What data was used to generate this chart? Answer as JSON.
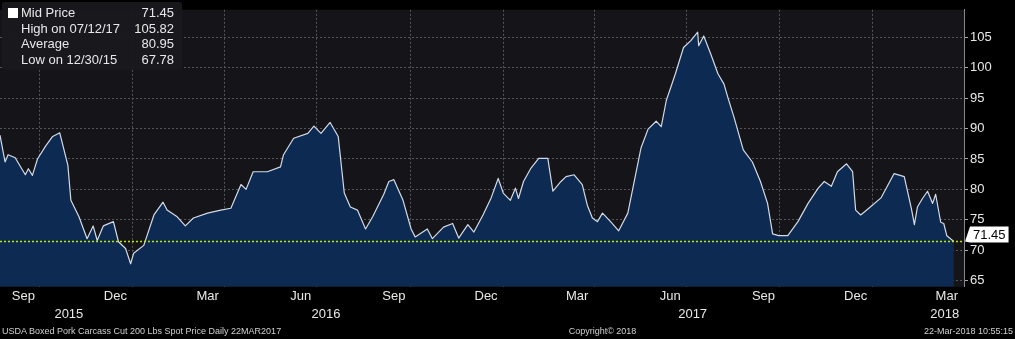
{
  "chart_data": {
    "type": "area",
    "x": [
      "2015-08-23",
      "2015-08-28",
      "2015-08-31",
      "2015-09-07",
      "2015-09-17",
      "2015-09-20",
      "2015-09-24",
      "2015-09-29",
      "2015-10-07",
      "2015-10-14",
      "2015-10-21",
      "2015-10-29",
      "2015-11-01",
      "2015-11-09",
      "2015-11-17",
      "2015-11-23",
      "2015-11-27",
      "2015-12-03",
      "2015-12-13",
      "2015-12-18",
      "2015-12-25",
      "2015-12-30",
      "2016-01-02",
      "2016-01-12",
      "2016-01-22",
      "2016-01-31",
      "2016-02-04",
      "2016-02-14",
      "2016-02-22",
      "2016-03-01",
      "2016-03-15",
      "2016-03-28",
      "2016-04-07",
      "2016-04-17",
      "2016-04-22",
      "2016-04-29",
      "2016-05-13",
      "2016-05-26",
      "2016-05-29",
      "2016-06-08",
      "2016-06-22",
      "2016-06-28",
      "2016-07-05",
      "2016-07-14",
      "2016-07-22",
      "2016-07-28",
      "2016-08-03",
      "2016-08-10",
      "2016-08-18",
      "2016-08-25",
      "2016-09-05",
      "2016-09-10",
      "2016-09-15",
      "2016-09-24",
      "2016-10-02",
      "2016-10-06",
      "2016-10-18",
      "2016-10-23",
      "2016-11-03",
      "2016-11-12",
      "2016-11-18",
      "2016-11-27",
      "2016-12-03",
      "2016-12-12",
      "2016-12-20",
      "2016-12-27",
      "2017-01-01",
      "2017-01-08",
      "2017-01-13",
      "2017-01-16",
      "2017-01-21",
      "2017-01-28",
      "2017-02-05",
      "2017-02-14",
      "2017-02-19",
      "2017-02-27",
      "2017-03-04",
      "2017-03-12",
      "2017-03-20",
      "2017-03-25",
      "2017-03-30",
      "2017-04-04",
      "2017-04-09",
      "2017-04-17",
      "2017-04-25",
      "2017-05-04",
      "2017-05-09",
      "2017-05-17",
      "2017-05-24",
      "2017-06-01",
      "2017-06-06",
      "2017-06-11",
      "2017-06-20",
      "2017-06-28",
      "2017-07-05",
      "2017-07-12",
      "2017-07-13",
      "2017-07-18",
      "2017-07-25",
      "2017-08-01",
      "2017-08-07",
      "2017-08-11",
      "2017-08-17",
      "2017-08-26",
      "2017-09-04",
      "2017-09-12",
      "2017-09-19",
      "2017-09-24",
      "2017-09-30",
      "2017-10-09",
      "2017-10-19",
      "2017-10-29",
      "2017-11-08",
      "2017-11-14",
      "2017-11-21",
      "2017-11-27",
      "2017-12-06",
      "2017-12-12",
      "2017-12-15",
      "2017-12-20",
      "2017-12-28",
      "2018-01-09",
      "2018-01-22",
      "2018-02-01",
      "2018-02-08",
      "2018-02-11",
      "2018-02-14",
      "2018-02-19",
      "2018-02-24",
      "2018-03-01",
      "2018-03-04",
      "2018-03-09",
      "2018-03-12",
      "2018-03-15",
      "2018-03-22"
    ],
    "series": [
      {
        "name": "Mid Price",
        "color": "#0d2b52",
        "values": [
          88.9,
          84.5,
          85.7,
          85.2,
          82.4,
          83.4,
          82.3,
          85,
          87.1,
          88.7,
          89.3,
          84,
          78.2,
          75.5,
          71.9,
          74,
          71.6,
          74,
          74.7,
          71.4,
          70.3,
          67.78,
          69.5,
          70.8,
          75.8,
          77.9,
          76.6,
          75.5,
          74,
          75.3,
          76.1,
          76.6,
          76.9,
          80.8,
          80,
          82.9,
          82.9,
          83.7,
          85.7,
          88.4,
          89.2,
          90.4,
          89.2,
          91,
          88.7,
          79.4,
          77.1,
          76.6,
          73.5,
          75.5,
          79.2,
          81.3,
          81.6,
          78.2,
          73.5,
          72.2,
          73.5,
          71.9,
          73.8,
          74.4,
          72,
          74.2,
          73,
          75.8,
          78.6,
          81.8,
          79.4,
          78.2,
          80.2,
          78.5,
          81.3,
          83.4,
          85.1,
          85.1,
          79.7,
          81.3,
          82.1,
          82.4,
          80.8,
          77.4,
          75.3,
          74.7,
          76.1,
          74.7,
          73.2,
          76.1,
          80.2,
          86.8,
          89.9,
          91.2,
          90.3,
          94.6,
          99,
          103.3,
          104.4,
          105.82,
          103.6,
          105.2,
          102.2,
          99,
          97.3,
          95,
          91.8,
          86.5,
          84.5,
          81.3,
          77.7,
          72.7,
          72.4,
          72.4,
          74.7,
          77.7,
          80.2,
          81.3,
          80.5,
          82.9,
          84.2,
          82.9,
          76.6,
          75.8,
          76.9,
          78.6,
          82.6,
          82.1,
          76.9,
          74.2,
          77.1,
          78.5,
          79.7,
          77.7,
          79.2,
          74.6,
          74.4,
          72.4,
          71.45
        ]
      }
    ],
    "xlim": [
      "2015-08-23",
      "2018-04-01"
    ],
    "xticks": [
      {
        "value": "2015-09-15",
        "label": "Sep"
      },
      {
        "value": "2015-10-01",
        "label": null
      },
      {
        "value": "2015-12-15",
        "label": "Dec"
      },
      {
        "value": "2016-01-01",
        "label": null
      },
      {
        "value": "2016-03-15",
        "label": "Mar"
      },
      {
        "value": "2016-04-01",
        "label": null
      },
      {
        "value": "2016-06-15",
        "label": "Jun"
      },
      {
        "value": "2016-07-01",
        "label": null
      },
      {
        "value": "2016-09-15",
        "label": "Sep"
      },
      {
        "value": "2016-10-01",
        "label": null
      },
      {
        "value": "2016-12-15",
        "label": "Dec"
      },
      {
        "value": "2017-01-01",
        "label": null
      },
      {
        "value": "2017-03-15",
        "label": "Mar"
      },
      {
        "value": "2017-04-01",
        "label": null
      },
      {
        "value": "2017-06-15",
        "label": "Jun"
      },
      {
        "value": "2017-07-01",
        "label": null
      },
      {
        "value": "2017-09-15",
        "label": "Sep"
      },
      {
        "value": "2017-10-01",
        "label": null
      },
      {
        "value": "2017-12-15",
        "label": "Dec"
      },
      {
        "value": "2018-01-01",
        "label": null
      },
      {
        "value": "2018-03-15",
        "label": "Mar"
      }
    ],
    "x2lim": [
      "2015-08-23",
      "2018-04-01"
    ],
    "x2ticks": [
      {
        "value": "2015-10-30",
        "label": "2015"
      },
      {
        "value": "2016-07-10",
        "label": "2016"
      },
      {
        "value": "2017-07-07",
        "label": "2017"
      },
      {
        "value": "2018-03-13",
        "label": "2018"
      }
    ],
    "ylim": [
      64,
      109.5
    ],
    "yticks": [
      65,
      70,
      75,
      80,
      85,
      90,
      95,
      100,
      105
    ],
    "grid": true,
    "legend": "top left",
    "marker": "none",
    "ref_lines": [
      {
        "axis": "y",
        "value": 71.45,
        "label": "71.45",
        "color": "#b8e600",
        "line_style": "dotted"
      }
    ],
    "annotations": [
      "High on 07/12/17 105.82",
      "Average 80.95",
      "Low on 12/30/15 67.78",
      "USDA Boxed Pork Carcass Cut 200 Lbs Spot Price  Daily 22MAR2017",
      "Copyright© 2018",
      "22-Mar-2018 10:55:15"
    ]
  }
}
